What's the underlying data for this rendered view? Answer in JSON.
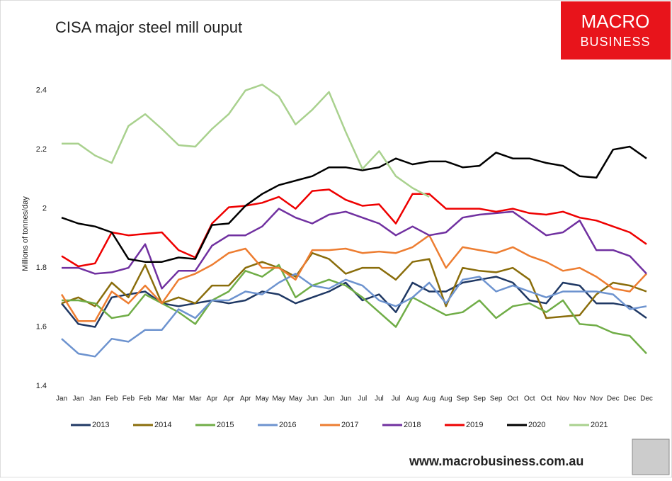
{
  "chart_data": {
    "type": "line",
    "title": "CISA major steel mill ouput",
    "y_label": "Millions of tonnes/day",
    "logo": [
      "MACRO",
      "BUSINESS"
    ],
    "source": "www.macrobusiness.com.au",
    "categories": [
      "Jan",
      "Jan",
      "Jan",
      "Feb",
      "Feb",
      "Feb",
      "Mar",
      "Mar",
      "Mar",
      "Apr",
      "Apr",
      "Apr",
      "May",
      "May",
      "May",
      "Jun",
      "Jun",
      "Jun",
      "Jul",
      "Jul",
      "Jul",
      "Aug",
      "Aug",
      "Aug",
      "Sep",
      "Sep",
      "Sep",
      "Oct",
      "Oct",
      "Oct",
      "Nov",
      "Nov",
      "Nov",
      "Dec",
      "Dec",
      "Dec"
    ],
    "ylim": [
      1.4,
      2.5
    ],
    "yticks": [
      1.4,
      1.6,
      1.8,
      2,
      2.2,
      2.4
    ],
    "grid": false,
    "legend": "bottom",
    "series": [
      {
        "name": "2013",
        "color": "#1f3864",
        "values": [
          1.68,
          1.61,
          1.6,
          1.7,
          1.71,
          1.72,
          1.68,
          1.67,
          1.68,
          1.69,
          1.68,
          1.69,
          1.72,
          1.71,
          1.68,
          1.7,
          1.72,
          1.75,
          1.69,
          1.71,
          1.65,
          1.75,
          1.72,
          1.72,
          1.75,
          1.76,
          1.77,
          1.75,
          1.69,
          1.68,
          1.75,
          1.74,
          1.68,
          1.68,
          1.67,
          1.63
        ]
      },
      {
        "name": "2014",
        "color": "#8a6d0b",
        "values": [
          1.68,
          1.7,
          1.67,
          1.75,
          1.7,
          1.81,
          1.68,
          1.7,
          1.68,
          1.74,
          1.74,
          1.8,
          1.82,
          1.8,
          1.77,
          1.85,
          1.83,
          1.78,
          1.8,
          1.8,
          1.76,
          1.82,
          1.83,
          1.67,
          1.8,
          1.79,
          1.785,
          1.8,
          1.76,
          1.63,
          1.635,
          1.64,
          1.71,
          1.75,
          1.74,
          1.72
        ]
      },
      {
        "name": "2015",
        "color": "#70ad47",
        "values": [
          1.69,
          1.69,
          1.68,
          1.63,
          1.64,
          1.71,
          1.68,
          1.65,
          1.61,
          1.69,
          1.72,
          1.79,
          1.77,
          1.81,
          1.7,
          1.74,
          1.76,
          1.74,
          1.7,
          1.65,
          1.6,
          1.7,
          1.67,
          1.64,
          1.65,
          1.69,
          1.63,
          1.67,
          1.68,
          1.65,
          1.69,
          1.61,
          1.605,
          1.58,
          1.57,
          1.51
        ]
      },
      {
        "name": "2016",
        "color": "#6d93cf",
        "values": [
          1.56,
          1.51,
          1.5,
          1.56,
          1.55,
          1.59,
          1.59,
          1.66,
          1.63,
          1.69,
          1.69,
          1.72,
          1.71,
          1.75,
          1.78,
          1.74,
          1.73,
          1.76,
          1.74,
          1.69,
          1.67,
          1.7,
          1.75,
          1.68,
          1.76,
          1.77,
          1.72,
          1.74,
          1.72,
          1.7,
          1.72,
          1.72,
          1.72,
          1.71,
          1.66,
          1.67
        ]
      },
      {
        "name": "2017",
        "color": "#ed7d31",
        "values": [
          1.71,
          1.62,
          1.62,
          1.72,
          1.68,
          1.74,
          1.68,
          1.76,
          1.78,
          1.81,
          1.85,
          1.865,
          1.8,
          1.8,
          1.76,
          1.86,
          1.86,
          1.865,
          1.85,
          1.855,
          1.85,
          1.87,
          1.91,
          1.8,
          1.87,
          1.86,
          1.85,
          1.87,
          1.84,
          1.82,
          1.79,
          1.8,
          1.77,
          1.73,
          1.72,
          1.78
        ]
      },
      {
        "name": "2018",
        "color": "#7030a0",
        "values": [
          1.8,
          1.8,
          1.78,
          1.785,
          1.8,
          1.88,
          1.73,
          1.79,
          1.79,
          1.875,
          1.91,
          1.91,
          1.94,
          2.0,
          1.97,
          1.95,
          1.98,
          1.99,
          1.97,
          1.95,
          1.91,
          1.94,
          1.91,
          1.92,
          1.97,
          1.98,
          1.985,
          1.99,
          1.95,
          1.91,
          1.92,
          1.96,
          1.86,
          1.86,
          1.84,
          1.78
        ]
      },
      {
        "name": "2019",
        "color": "#ee0000",
        "values": [
          1.84,
          1.805,
          1.815,
          1.92,
          1.91,
          1.915,
          1.92,
          1.86,
          1.835,
          1.95,
          2.005,
          2.01,
          2.02,
          2.04,
          2.0,
          2.06,
          2.065,
          2.03,
          2.01,
          2.015,
          1.95,
          2.05,
          2.05,
          2.0,
          2.0,
          2.0,
          1.99,
          2.0,
          1.985,
          1.98,
          1.99,
          1.97,
          1.96,
          1.94,
          1.92,
          1.88
        ]
      },
      {
        "name": "2020",
        "color": "#000000",
        "values": [
          1.97,
          1.95,
          1.94,
          1.92,
          1.83,
          1.82,
          1.82,
          1.835,
          1.83,
          1.945,
          1.95,
          2.01,
          2.05,
          2.08,
          2.095,
          2.11,
          2.14,
          2.14,
          2.13,
          2.14,
          2.17,
          2.15,
          2.16,
          2.16,
          2.14,
          2.145,
          2.19,
          2.17,
          2.17,
          2.155,
          2.145,
          2.11,
          2.105,
          2.2,
          2.21,
          2.17
        ]
      },
      {
        "name": "2021",
        "color": "#a9d18e",
        "values": [
          2.22,
          2.22,
          2.18,
          2.155,
          2.28,
          2.32,
          2.27,
          2.215,
          2.21,
          2.27,
          2.32,
          2.4,
          2.42,
          2.38,
          2.285,
          2.335,
          2.395,
          2.26,
          2.135,
          2.195,
          2.11,
          2.07,
          2.04,
          null,
          null,
          null,
          null,
          null,
          null,
          null,
          null,
          null,
          null,
          null,
          null,
          null
        ]
      }
    ]
  }
}
